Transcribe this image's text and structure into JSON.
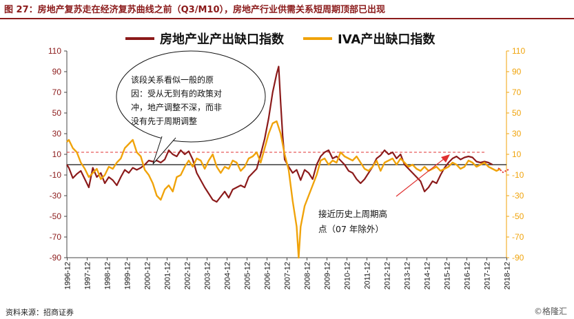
{
  "header": {
    "title": "图 27：房地产复苏走在经济复苏曲线之前（Q3/M10），房地产行业供需关系短周期顶部已出现"
  },
  "footer": {
    "source": "资料来源：招商证券",
    "watermark": "©格隆汇"
  },
  "callout": {
    "lines": [
      "该段关系看似一般的原",
      "因：受从无到有的政策对",
      "冲，地产调整不深，而非",
      "没有先于周期调整"
    ]
  },
  "note": {
    "lines": [
      "接近历史上周期高",
      "点（07 年除外）"
    ]
  },
  "colors": {
    "series1": "#8b1a1a",
    "series2": "#f0a30a",
    "reference_line": "#e03030",
    "arrow": "#e03030"
  },
  "chart_data": {
    "type": "line",
    "title": "",
    "xlabel": "",
    "ylabel": "",
    "x_ticks": [
      "1996-12",
      "1997-12",
      "1998-12",
      "1999-12",
      "2000-12",
      "2001-12",
      "2002-12",
      "2003-12",
      "2004-12",
      "2005-12",
      "2006-12",
      "2007-12",
      "2008-12",
      "2009-12",
      "2010-12",
      "2011-12",
      "2012-12",
      "2013-12",
      "2014-12",
      "2015-12",
      "2016-12",
      "2017-12",
      "2018-12"
    ],
    "x_range": [
      1996.9,
      2018.9
    ],
    "ylim_left": [
      -90,
      110
    ],
    "ylim_right": [
      -90,
      110
    ],
    "y_ticks": [
      110,
      90,
      70,
      50,
      30,
      10,
      -10,
      -30,
      -50,
      -70,
      -90
    ],
    "reference_line_y": 12,
    "legend_position": "top",
    "series": [
      {
        "name": "房地产业产出缺口指数",
        "axis": "left",
        "points": [
          [
            1996.9,
            0
          ],
          [
            1997.0,
            -3
          ],
          [
            1997.2,
            -13
          ],
          [
            1997.4,
            -9
          ],
          [
            1997.6,
            -6
          ],
          [
            1997.8,
            -14
          ],
          [
            1998.0,
            -22
          ],
          [
            1998.2,
            -3
          ],
          [
            1998.4,
            -12
          ],
          [
            1998.6,
            -8
          ],
          [
            1998.8,
            -18
          ],
          [
            1999.0,
            -12
          ],
          [
            1999.2,
            -15
          ],
          [
            1999.4,
            -20
          ],
          [
            1999.6,
            -12
          ],
          [
            1999.8,
            -5
          ],
          [
            2000.0,
            -8
          ],
          [
            2000.2,
            -3
          ],
          [
            2000.4,
            -5
          ],
          [
            2000.6,
            -3
          ],
          [
            2000.8,
            0
          ],
          [
            2001.0,
            4
          ],
          [
            2001.2,
            3
          ],
          [
            2001.4,
            4
          ],
          [
            2001.6,
            2
          ],
          [
            2001.8,
            5
          ],
          [
            2002.0,
            14
          ],
          [
            2002.2,
            10
          ],
          [
            2002.4,
            8
          ],
          [
            2002.6,
            14
          ],
          [
            2002.8,
            10
          ],
          [
            2003.0,
            13
          ],
          [
            2003.2,
            5
          ],
          [
            2003.4,
            -8
          ],
          [
            2003.6,
            -15
          ],
          [
            2003.8,
            -22
          ],
          [
            2004.0,
            -28
          ],
          [
            2004.2,
            -34
          ],
          [
            2004.4,
            -36
          ],
          [
            2004.6,
            -31
          ],
          [
            2004.8,
            -26
          ],
          [
            2005.0,
            -32
          ],
          [
            2005.2,
            -24
          ],
          [
            2005.4,
            -22
          ],
          [
            2005.6,
            -20
          ],
          [
            2005.8,
            -22
          ],
          [
            2006.0,
            -12
          ],
          [
            2006.2,
            -8
          ],
          [
            2006.4,
            -4
          ],
          [
            2006.6,
            10
          ],
          [
            2006.8,
            25
          ],
          [
            2007.0,
            45
          ],
          [
            2007.2,
            70
          ],
          [
            2007.4,
            88
          ],
          [
            2007.5,
            95
          ],
          [
            2007.6,
            60
          ],
          [
            2007.7,
            28
          ],
          [
            2007.8,
            5
          ],
          [
            2008.0,
            -2
          ],
          [
            2008.2,
            -8
          ],
          [
            2008.4,
            -5
          ],
          [
            2008.6,
            -15
          ],
          [
            2008.8,
            -5
          ],
          [
            2009.0,
            -8
          ],
          [
            2009.2,
            -14
          ],
          [
            2009.4,
            0
          ],
          [
            2009.6,
            8
          ],
          [
            2009.8,
            12
          ],
          [
            2010.0,
            14
          ],
          [
            2010.2,
            6
          ],
          [
            2010.4,
            8
          ],
          [
            2010.6,
            4
          ],
          [
            2010.8,
            0
          ],
          [
            2011.0,
            -6
          ],
          [
            2011.2,
            -8
          ],
          [
            2011.4,
            -14
          ],
          [
            2011.6,
            -18
          ],
          [
            2011.8,
            -14
          ],
          [
            2012.0,
            -8
          ],
          [
            2012.2,
            -2
          ],
          [
            2012.4,
            6
          ],
          [
            2012.6,
            9
          ],
          [
            2012.8,
            14
          ],
          [
            2013.0,
            10
          ],
          [
            2013.2,
            12
          ],
          [
            2013.4,
            6
          ],
          [
            2013.6,
            10
          ],
          [
            2013.8,
            0
          ],
          [
            2014.0,
            -4
          ],
          [
            2014.2,
            -8
          ],
          [
            2014.4,
            -12
          ],
          [
            2014.6,
            -16
          ],
          [
            2014.8,
            -26
          ],
          [
            2015.0,
            -22
          ],
          [
            2015.2,
            -16
          ],
          [
            2015.4,
            -18
          ],
          [
            2015.6,
            -10
          ],
          [
            2015.8,
            -3
          ],
          [
            2016.0,
            2
          ],
          [
            2016.2,
            6
          ],
          [
            2016.4,
            8
          ],
          [
            2016.6,
            5
          ],
          [
            2016.8,
            7
          ],
          [
            2017.0,
            8
          ],
          [
            2017.2,
            7
          ],
          [
            2017.4,
            3
          ],
          [
            2017.6,
            2
          ],
          [
            2017.8,
            3
          ],
          [
            2018.0,
            2
          ],
          [
            2018.2,
            0
          ]
        ]
      },
      {
        "name": "IVA产出缺口指数",
        "axis": "right",
        "points": [
          [
            1996.9,
            22
          ],
          [
            1997.0,
            24
          ],
          [
            1997.2,
            16
          ],
          [
            1997.4,
            12
          ],
          [
            1997.6,
            2
          ],
          [
            1997.8,
            -4
          ],
          [
            1998.0,
            -12
          ],
          [
            1998.2,
            -8
          ],
          [
            1998.4,
            -4
          ],
          [
            1998.6,
            -14
          ],
          [
            1998.8,
            -10
          ],
          [
            1999.0,
            -2
          ],
          [
            1999.2,
            -4
          ],
          [
            1999.4,
            2
          ],
          [
            1999.6,
            6
          ],
          [
            1999.8,
            16
          ],
          [
            2000.0,
            20
          ],
          [
            2000.2,
            24
          ],
          [
            2000.4,
            12
          ],
          [
            2000.6,
            8
          ],
          [
            2000.8,
            -5
          ],
          [
            2001.0,
            -10
          ],
          [
            2001.2,
            -18
          ],
          [
            2001.4,
            -30
          ],
          [
            2001.6,
            -34
          ],
          [
            2001.8,
            -24
          ],
          [
            2002.0,
            -20
          ],
          [
            2002.2,
            -26
          ],
          [
            2002.4,
            -12
          ],
          [
            2002.6,
            -10
          ],
          [
            2002.8,
            -2
          ],
          [
            2003.0,
            4
          ],
          [
            2003.2,
            -2
          ],
          [
            2003.4,
            6
          ],
          [
            2003.6,
            4
          ],
          [
            2003.8,
            -4
          ],
          [
            2004.0,
            4
          ],
          [
            2004.2,
            10
          ],
          [
            2004.4,
            -2
          ],
          [
            2004.6,
            -8
          ],
          [
            2004.8,
            -2
          ],
          [
            2005.0,
            -4
          ],
          [
            2005.2,
            4
          ],
          [
            2005.4,
            2
          ],
          [
            2005.6,
            -6
          ],
          [
            2005.8,
            -2
          ],
          [
            2006.0,
            6
          ],
          [
            2006.2,
            8
          ],
          [
            2006.4,
            12
          ],
          [
            2006.6,
            2
          ],
          [
            2006.8,
            16
          ],
          [
            2007.0,
            30
          ],
          [
            2007.2,
            40
          ],
          [
            2007.4,
            42
          ],
          [
            2007.6,
            30
          ],
          [
            2007.8,
            10
          ],
          [
            2008.0,
            -5
          ],
          [
            2008.2,
            -35
          ],
          [
            2008.4,
            -60
          ],
          [
            2008.5,
            -90
          ],
          [
            2008.6,
            -60
          ],
          [
            2008.8,
            -40
          ],
          [
            2009.0,
            -30
          ],
          [
            2009.2,
            -20
          ],
          [
            2009.4,
            -10
          ],
          [
            2009.6,
            4
          ],
          [
            2009.8,
            6
          ],
          [
            2010.0,
            0
          ],
          [
            2010.2,
            4
          ],
          [
            2010.4,
            2
          ],
          [
            2010.6,
            12
          ],
          [
            2010.8,
            8
          ],
          [
            2011.0,
            6
          ],
          [
            2011.2,
            4
          ],
          [
            2011.4,
            8
          ],
          [
            2011.6,
            2
          ],
          [
            2011.8,
            -4
          ],
          [
            2012.0,
            -6
          ],
          [
            2012.2,
            -2
          ],
          [
            2012.4,
            4
          ],
          [
            2012.6,
            -6
          ],
          [
            2012.8,
            2
          ],
          [
            2013.0,
            4
          ],
          [
            2013.2,
            6
          ],
          [
            2013.4,
            0
          ],
          [
            2013.6,
            6
          ],
          [
            2013.8,
            2
          ],
          [
            2014.0,
            -2
          ],
          [
            2014.2,
            0
          ],
          [
            2014.4,
            -4
          ],
          [
            2014.6,
            -6
          ],
          [
            2014.8,
            -2
          ],
          [
            2015.0,
            -6
          ],
          [
            2015.2,
            -4
          ],
          [
            2015.4,
            -2
          ],
          [
            2015.6,
            -6
          ],
          [
            2015.8,
            -4
          ],
          [
            2016.0,
            -2
          ],
          [
            2016.2,
            2
          ],
          [
            2016.4,
            0
          ],
          [
            2016.6,
            -4
          ],
          [
            2016.8,
            -2
          ],
          [
            2017.0,
            4
          ],
          [
            2017.2,
            2
          ],
          [
            2017.4,
            -2
          ],
          [
            2017.6,
            0
          ],
          [
            2017.8,
            2
          ],
          [
            2018.0,
            -2
          ],
          [
            2018.2,
            -4
          ],
          [
            2018.4,
            -6
          ],
          [
            2018.6,
            -4
          ]
        ]
      }
    ]
  }
}
